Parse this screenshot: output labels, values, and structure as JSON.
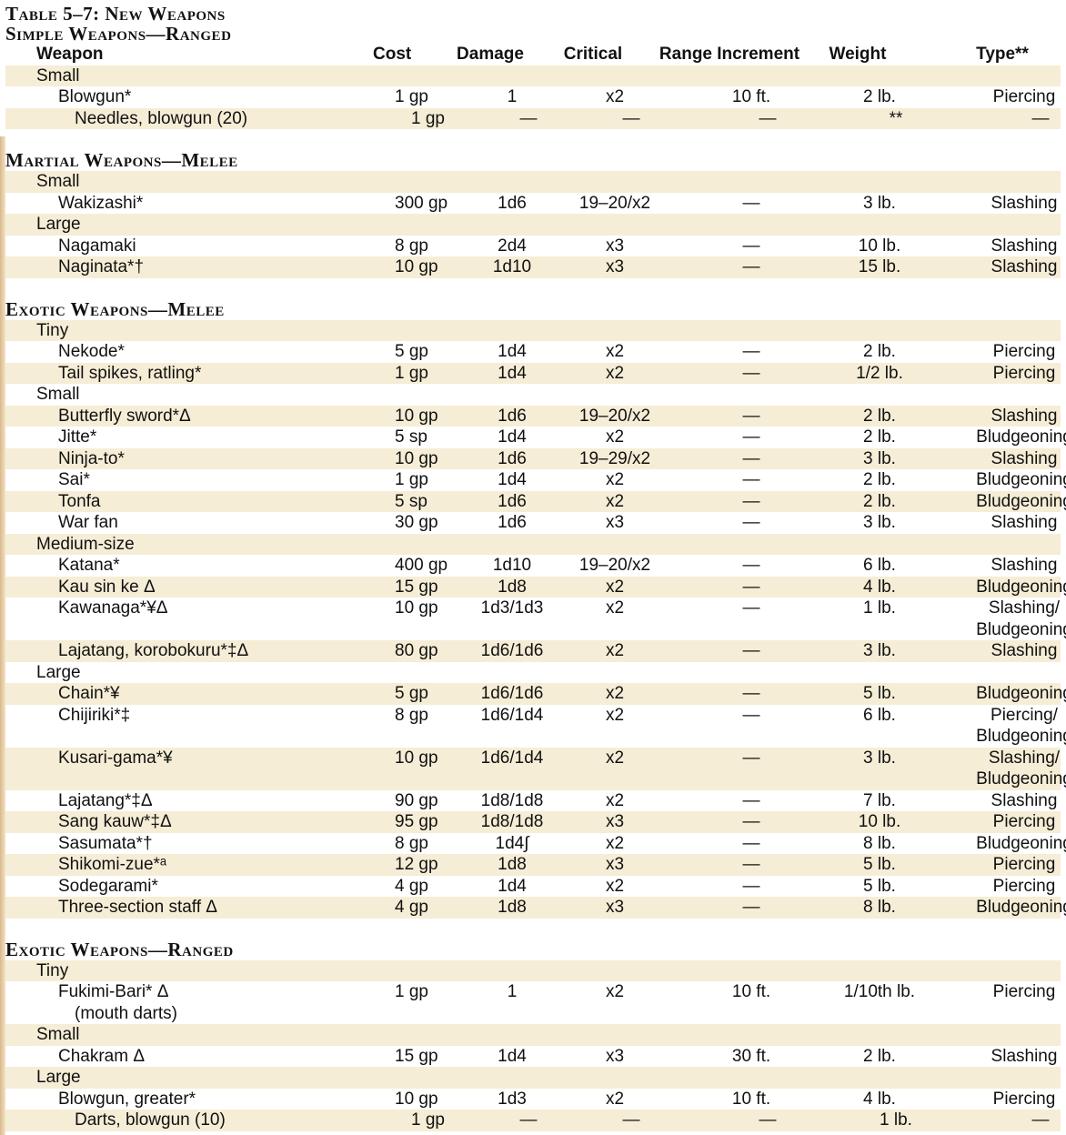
{
  "table_title": "Table 5–7: New Weapons",
  "headers": {
    "weapon": "Weapon",
    "cost": "Cost",
    "damage": "Damage",
    "critical": "Critical",
    "range": "Range Increment",
    "weight": "Weight",
    "type": "Type**"
  },
  "s1": {
    "title": "Simple Weapons—Ranged",
    "small": "Small",
    "r1": [
      "Blowgun*",
      "1 gp",
      "1",
      "x2",
      "10 ft.",
      "2 lb.",
      "Piercing"
    ],
    "r2": [
      "Needles, blowgun (20)",
      "1 gp",
      "—",
      "—",
      "—",
      "**",
      "—"
    ]
  },
  "s2": {
    "title": "Martial Weapons—Melee",
    "small": "Small",
    "r1": [
      "Wakizashi*",
      "300 gp",
      "1d6",
      "19–20/x2",
      "—",
      "3 lb.",
      "Slashing"
    ],
    "large": "Large",
    "r2": [
      "Nagamaki",
      "8 gp",
      "2d4",
      "x3",
      "—",
      "10 lb.",
      "Slashing"
    ],
    "r3": [
      "Naginata*†",
      "10 gp",
      "1d10",
      "x3",
      "—",
      "15 lb.",
      "Slashing"
    ]
  },
  "s3": {
    "title": "Exotic Weapons—Melee",
    "tiny": "Tiny",
    "t1": [
      "Nekode*",
      "5 gp",
      "1d4",
      "x2",
      "—",
      "2 lb.",
      "Piercing"
    ],
    "t2": [
      "Tail spikes, ratling*",
      "1 gp",
      "1d4",
      "x2",
      "—",
      "1/2 lb.",
      "Piercing"
    ],
    "small": "Small",
    "s1": [
      "Butterfly sword*Δ",
      "10 gp",
      "1d6",
      "19–20/x2",
      "—",
      "2 lb.",
      "Slashing"
    ],
    "s2": [
      "Jitte*",
      "5 sp",
      "1d4",
      "x2",
      "—",
      "2 lb.",
      "Bludgeoning"
    ],
    "s3": [
      "Ninja-to*",
      "10 gp",
      "1d6",
      "19–29/x2",
      "—",
      "3 lb.",
      "Slashing"
    ],
    "s4": [
      "Sai*",
      "1 gp",
      "1d4",
      "x2",
      "—",
      "2 lb.",
      "Bludgeoning"
    ],
    "s5": [
      "Tonfa",
      "5 sp",
      "1d6",
      "x2",
      "—",
      "2 lb.",
      "Bludgeoning"
    ],
    "s6": [
      "War fan",
      "30 gp",
      "1d6",
      "x3",
      "—",
      "3 lb.",
      "Slashing"
    ],
    "medium": "Medium-size",
    "m1": [
      "Katana*",
      "400 gp",
      "1d10",
      "19–20/x2",
      "—",
      "6 lb.",
      "Slashing"
    ],
    "m2": [
      "Kau sin ke Δ",
      "15 gp",
      "1d8",
      "x2",
      "—",
      "4 lb.",
      "Bludgeoning"
    ],
    "m3": [
      "Kawanaga*¥Δ",
      "10 gp",
      "1d3/1d3",
      "x2",
      "—",
      "1 lb.",
      "Slashing/",
      "Bludgeoning"
    ],
    "m4": [
      "Lajatang, korobokuru*‡Δ",
      "80 gp",
      "1d6/1d6",
      "x2",
      "—",
      "3 lb.",
      "Slashing"
    ],
    "large": "Large",
    "l1": [
      "Chain*¥",
      "5 gp",
      "1d6/1d6",
      "x2",
      "—",
      "5 lb.",
      "Bludgeoning"
    ],
    "l2": [
      "Chijiriki*‡",
      "8 gp",
      "1d6/1d4",
      "x2",
      "—",
      "6 lb.",
      "Piercing/",
      "Bludgeoning"
    ],
    "l3": [
      "Kusari-gama*¥",
      "10 gp",
      "1d6/1d4",
      "x2",
      "—",
      "3 lb.",
      "Slashing/",
      "Bludgeoning"
    ],
    "l4": [
      "Lajatang*‡Δ",
      "90 gp",
      "1d8/1d8",
      "x2",
      "—",
      "7 lb.",
      "Slashing"
    ],
    "l5": [
      "Sang kauw*‡Δ",
      "95 gp",
      "1d8/1d8",
      "x3",
      "—",
      "10 lb.",
      "Piercing"
    ],
    "l6": [
      "Sasumata*†",
      "8 gp",
      "1d4∫",
      "x2",
      "—",
      "8 lb.",
      "Bludgeoning"
    ],
    "l7": [
      "Shikomi-zue*ᵃ",
      "12 gp",
      "1d8",
      "x3",
      "—",
      "5 lb.",
      "Piercing"
    ],
    "l8": [
      "Sodegarami*",
      "4 gp",
      "1d4",
      "x2",
      "—",
      "5 lb.",
      "Piercing"
    ],
    "l9": [
      "Three-section staff Δ",
      "4 gp",
      "1d8",
      "x3",
      "—",
      "8 lb.",
      "Bludgeoning"
    ]
  },
  "s4": {
    "title": "Exotic Weapons—Ranged",
    "tiny": "Tiny",
    "t1": [
      "Fukimi-Bari* Δ",
      "1 gp",
      "1",
      "x2",
      "10 ft.",
      "1/10th lb.",
      "Piercing",
      "(mouth darts)"
    ],
    "small": "Small",
    "s1": [
      "Chakram Δ",
      "15 gp",
      "1d4",
      "x3",
      "30 ft.",
      "2 lb.",
      "Slashing"
    ],
    "large": "Large",
    "l1": [
      "Blowgun, greater*",
      "10 gp",
      "1d3",
      "x2",
      "10 ft.",
      "4 lb.",
      "Piercing"
    ],
    "l2": [
      "Darts, blowgun (10)",
      "1 gp",
      "—",
      "—",
      "—",
      "1 lb.",
      "—"
    ]
  }
}
